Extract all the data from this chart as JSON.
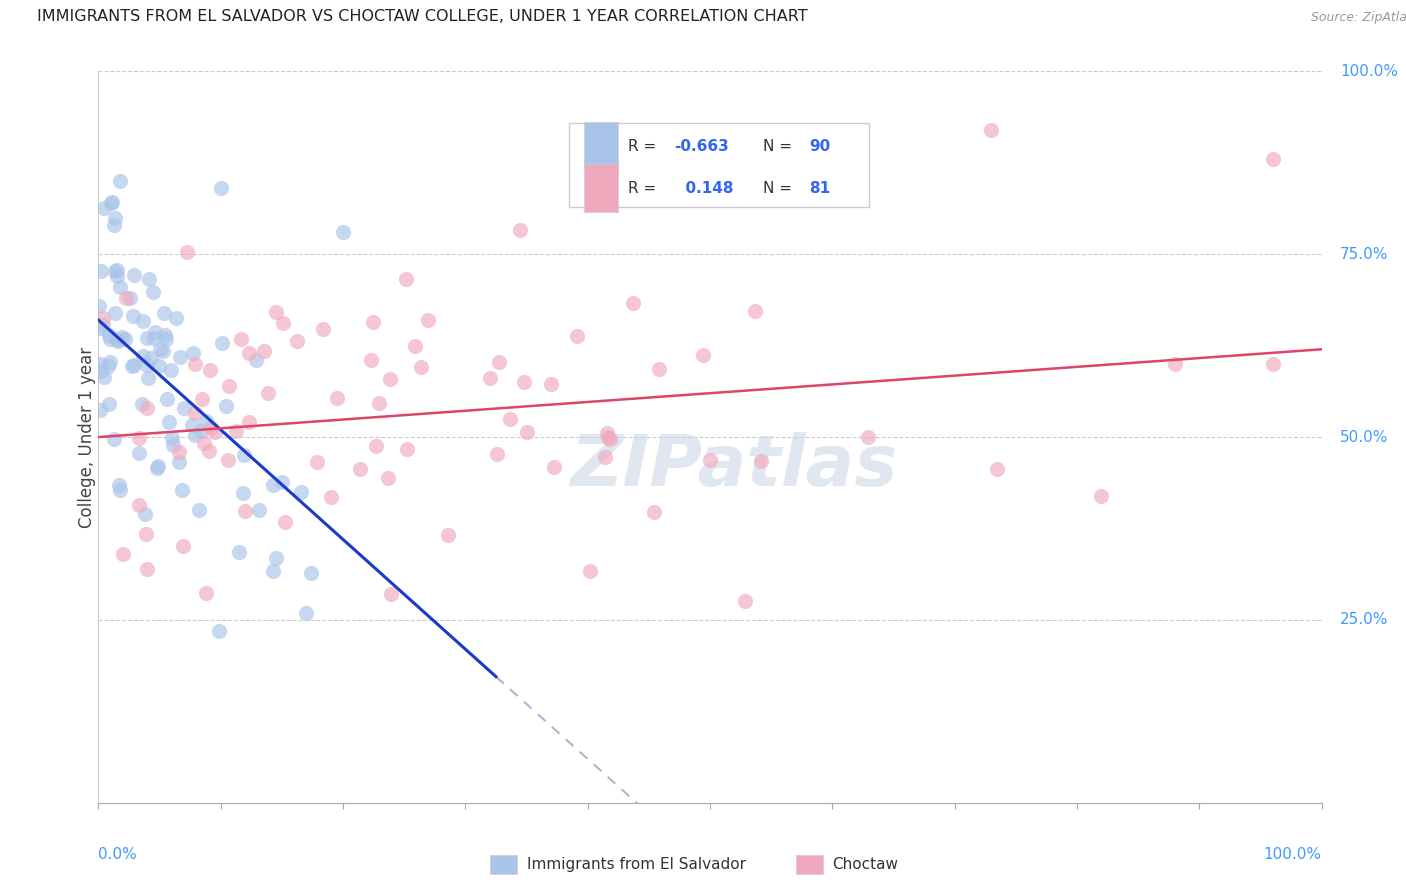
{
  "title": "IMMIGRANTS FROM EL SALVADOR VS CHOCTAW COLLEGE, UNDER 1 YEAR CORRELATION CHART",
  "source": "Source: ZipAtlas.com",
  "ylabel": "College, Under 1 year",
  "r_blue": -0.663,
  "n_blue": 90,
  "r_pink": 0.148,
  "n_pink": 81,
  "blue_color": "#a8c4e8",
  "pink_color": "#f0a8bc",
  "blue_line_color": "#1a3acc",
  "pink_line_color": "#e04466",
  "dashed_line_color": "#aab8cc",
  "watermark": "ZIPatlas",
  "watermark_color": "#c8d4e4",
  "right_tick_color": "#4499ff",
  "background_color": "#ffffff",
  "grid_color": "#cccccc",
  "legend_edge_color": "#cccccc",
  "title_color": "#222222",
  "source_color": "#999999",
  "ylabel_color": "#444444",
  "legend_text_color": "#333333",
  "legend_number_color": "#3366ee"
}
